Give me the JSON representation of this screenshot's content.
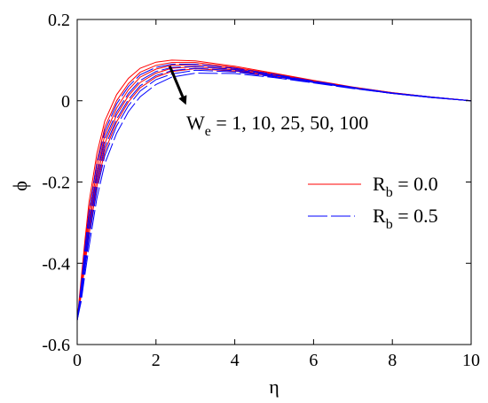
{
  "chart_data": {
    "type": "line",
    "xlabel": "η",
    "ylabel": "ϕ",
    "xlim": [
      0,
      10
    ],
    "ylim": [
      -0.6,
      0.2
    ],
    "xticks": [
      "0",
      "2",
      "4",
      "6",
      "8",
      "10"
    ],
    "yticks": [
      "-0.6",
      "-0.4",
      "-0.2",
      "0",
      "0.2"
    ],
    "grid": false,
    "legend_position": "right-middle",
    "annotation": {
      "main": "W",
      "sub": "e",
      "rest": " = 1, 10, 25, 50, 100",
      "arrow_from": [
        2.35,
        0.085
      ],
      "arrow_to": [
        2.72,
        0.0
      ]
    },
    "legend": [
      {
        "main": "R",
        "sub": "b",
        "rest": " = 0.0",
        "color": "#ff0000",
        "dash": "solid"
      },
      {
        "main": "R",
        "sub": "b",
        "rest": " = 0.5",
        "color": "#0000ff",
        "dash": "dashed"
      }
    ],
    "series": [
      {
        "group": "Rb=0.0",
        "color": "#ff0000",
        "dash": "solid",
        "points": [
          [
            0,
            -0.54
          ],
          [
            0.1,
            -0.44
          ],
          [
            0.2,
            -0.34
          ],
          [
            0.3,
            -0.25
          ],
          [
            0.5,
            -0.13
          ],
          [
            0.7,
            -0.05
          ],
          [
            1.0,
            0.015
          ],
          [
            1.3,
            0.055
          ],
          [
            1.6,
            0.08
          ],
          [
            2.0,
            0.095
          ],
          [
            2.4,
            0.1
          ],
          [
            3.0,
            0.098
          ],
          [
            4.0,
            0.085
          ],
          [
            5.0,
            0.068
          ],
          [
            6.0,
            0.05
          ],
          [
            7.0,
            0.034
          ],
          [
            8.0,
            0.02
          ],
          [
            9.0,
            0.009
          ],
          [
            10.0,
            0.0
          ]
        ]
      },
      {
        "group": "Rb=0.0",
        "color": "#ff0000",
        "dash": "solid",
        "points": [
          [
            0,
            -0.54
          ],
          [
            0.1,
            -0.45
          ],
          [
            0.2,
            -0.355
          ],
          [
            0.3,
            -0.27
          ],
          [
            0.5,
            -0.15
          ],
          [
            0.7,
            -0.065
          ],
          [
            1.0,
            0.0
          ],
          [
            1.3,
            0.042
          ],
          [
            1.6,
            0.07
          ],
          [
            2.0,
            0.087
          ],
          [
            2.4,
            0.094
          ],
          [
            3.0,
            0.094
          ],
          [
            4.0,
            0.082
          ],
          [
            5.0,
            0.066
          ],
          [
            6.0,
            0.049
          ],
          [
            7.0,
            0.033
          ],
          [
            8.0,
            0.02
          ],
          [
            9.0,
            0.009
          ],
          [
            10.0,
            0.0
          ]
        ]
      },
      {
        "group": "Rb=0.0",
        "color": "#ff0000",
        "dash": "solid",
        "points": [
          [
            0,
            -0.54
          ],
          [
            0.1,
            -0.46
          ],
          [
            0.2,
            -0.37
          ],
          [
            0.3,
            -0.29
          ],
          [
            0.5,
            -0.17
          ],
          [
            0.7,
            -0.085
          ],
          [
            1.0,
            -0.018
          ],
          [
            1.3,
            0.027
          ],
          [
            1.6,
            0.058
          ],
          [
            2.0,
            0.078
          ],
          [
            2.4,
            0.087
          ],
          [
            3.0,
            0.089
          ],
          [
            4.0,
            0.079
          ],
          [
            5.0,
            0.064
          ],
          [
            6.0,
            0.048
          ],
          [
            7.0,
            0.033
          ],
          [
            8.0,
            0.019
          ],
          [
            9.0,
            0.009
          ],
          [
            10.0,
            0.0
          ]
        ]
      },
      {
        "group": "Rb=0.0",
        "color": "#ff0000",
        "dash": "solid",
        "points": [
          [
            0,
            -0.54
          ],
          [
            0.1,
            -0.47
          ],
          [
            0.2,
            -0.385
          ],
          [
            0.3,
            -0.31
          ],
          [
            0.5,
            -0.19
          ],
          [
            0.7,
            -0.105
          ],
          [
            1.0,
            -0.035
          ],
          [
            1.3,
            0.012
          ],
          [
            1.6,
            0.045
          ],
          [
            2.0,
            0.068
          ],
          [
            2.4,
            0.08
          ],
          [
            3.0,
            0.084
          ],
          [
            4.0,
            0.076
          ],
          [
            5.0,
            0.062
          ],
          [
            6.0,
            0.047
          ],
          [
            7.0,
            0.032
          ],
          [
            8.0,
            0.019
          ],
          [
            9.0,
            0.009
          ],
          [
            10.0,
            0.0
          ]
        ]
      },
      {
        "group": "Rb=0.0",
        "color": "#ff0000",
        "dash": "solid",
        "points": [
          [
            0,
            -0.54
          ],
          [
            0.1,
            -0.48
          ],
          [
            0.2,
            -0.4
          ],
          [
            0.3,
            -0.33
          ],
          [
            0.5,
            -0.21
          ],
          [
            0.7,
            -0.125
          ],
          [
            1.0,
            -0.052
          ],
          [
            1.3,
            -0.003
          ],
          [
            1.6,
            0.032
          ],
          [
            2.0,
            0.058
          ],
          [
            2.4,
            0.072
          ],
          [
            3.0,
            0.079
          ],
          [
            4.0,
            0.073
          ],
          [
            5.0,
            0.06
          ],
          [
            6.0,
            0.046
          ],
          [
            7.0,
            0.031
          ],
          [
            8.0,
            0.018
          ],
          [
            9.0,
            0.008
          ],
          [
            10.0,
            0.0
          ]
        ]
      },
      {
        "group": "Rb=0.5",
        "color": "#0000ff",
        "dash": "dashed",
        "points": [
          [
            0,
            -0.54
          ],
          [
            0.1,
            -0.455
          ],
          [
            0.2,
            -0.36
          ],
          [
            0.3,
            -0.275
          ],
          [
            0.5,
            -0.155
          ],
          [
            0.7,
            -0.075
          ],
          [
            1.0,
            -0.008
          ],
          [
            1.3,
            0.035
          ],
          [
            1.6,
            0.064
          ],
          [
            2.0,
            0.082
          ],
          [
            2.4,
            0.09
          ],
          [
            3.0,
            0.09
          ],
          [
            4.0,
            0.08
          ],
          [
            5.0,
            0.065
          ],
          [
            6.0,
            0.048
          ],
          [
            7.0,
            0.033
          ],
          [
            8.0,
            0.019
          ],
          [
            9.0,
            0.009
          ],
          [
            10.0,
            0.0
          ]
        ]
      },
      {
        "group": "Rb=0.5",
        "color": "#0000ff",
        "dash": "dashed",
        "points": [
          [
            0,
            -0.54
          ],
          [
            0.1,
            -0.465
          ],
          [
            0.2,
            -0.38
          ],
          [
            0.3,
            -0.3
          ],
          [
            0.5,
            -0.18
          ],
          [
            0.7,
            -0.095
          ],
          [
            1.0,
            -0.028
          ],
          [
            1.3,
            0.018
          ],
          [
            1.6,
            0.05
          ],
          [
            2.0,
            0.072
          ],
          [
            2.4,
            0.082
          ],
          [
            3.0,
            0.085
          ],
          [
            4.0,
            0.077
          ],
          [
            5.0,
            0.063
          ],
          [
            6.0,
            0.047
          ],
          [
            7.0,
            0.032
          ],
          [
            8.0,
            0.019
          ],
          [
            9.0,
            0.009
          ],
          [
            10.0,
            0.0
          ]
        ]
      },
      {
        "group": "Rb=0.5",
        "color": "#0000ff",
        "dash": "dashed",
        "points": [
          [
            0,
            -0.54
          ],
          [
            0.1,
            -0.475
          ],
          [
            0.2,
            -0.395
          ],
          [
            0.3,
            -0.32
          ],
          [
            0.5,
            -0.2
          ],
          [
            0.7,
            -0.115
          ],
          [
            1.0,
            -0.045
          ],
          [
            1.3,
            0.003
          ],
          [
            1.6,
            0.037
          ],
          [
            2.0,
            0.062
          ],
          [
            2.4,
            0.074
          ],
          [
            3.0,
            0.08
          ],
          [
            4.0,
            0.074
          ],
          [
            5.0,
            0.061
          ],
          [
            6.0,
            0.046
          ],
          [
            7.0,
            0.031
          ],
          [
            8.0,
            0.018
          ],
          [
            9.0,
            0.008
          ],
          [
            10.0,
            0.0
          ]
        ]
      },
      {
        "group": "Rb=0.5",
        "color": "#0000ff",
        "dash": "dashed",
        "points": [
          [
            0,
            -0.54
          ],
          [
            0.1,
            -0.485
          ],
          [
            0.2,
            -0.41
          ],
          [
            0.3,
            -0.34
          ],
          [
            0.5,
            -0.22
          ],
          [
            0.7,
            -0.135
          ],
          [
            1.0,
            -0.062
          ],
          [
            1.3,
            -0.012
          ],
          [
            1.6,
            0.024
          ],
          [
            2.0,
            0.052
          ],
          [
            2.4,
            0.066
          ],
          [
            3.0,
            0.075
          ],
          [
            4.0,
            0.071
          ],
          [
            5.0,
            0.059
          ],
          [
            6.0,
            0.045
          ],
          [
            7.0,
            0.031
          ],
          [
            8.0,
            0.018
          ],
          [
            9.0,
            0.008
          ],
          [
            10.0,
            0.0
          ]
        ]
      },
      {
        "group": "Rb=0.5",
        "color": "#0000ff",
        "dash": "dashed",
        "points": [
          [
            0,
            -0.54
          ],
          [
            0.1,
            -0.495
          ],
          [
            0.2,
            -0.425
          ],
          [
            0.3,
            -0.36
          ],
          [
            0.5,
            -0.24
          ],
          [
            0.7,
            -0.155
          ],
          [
            1.0,
            -0.08
          ],
          [
            1.3,
            -0.027
          ],
          [
            1.6,
            0.01
          ],
          [
            2.0,
            0.04
          ],
          [
            2.4,
            0.058
          ],
          [
            3.0,
            0.068
          ],
          [
            4.0,
            0.067
          ],
          [
            5.0,
            0.057
          ],
          [
            6.0,
            0.044
          ],
          [
            7.0,
            0.03
          ],
          [
            8.0,
            0.018
          ],
          [
            9.0,
            0.008
          ],
          [
            10.0,
            0.0
          ]
        ]
      }
    ]
  }
}
